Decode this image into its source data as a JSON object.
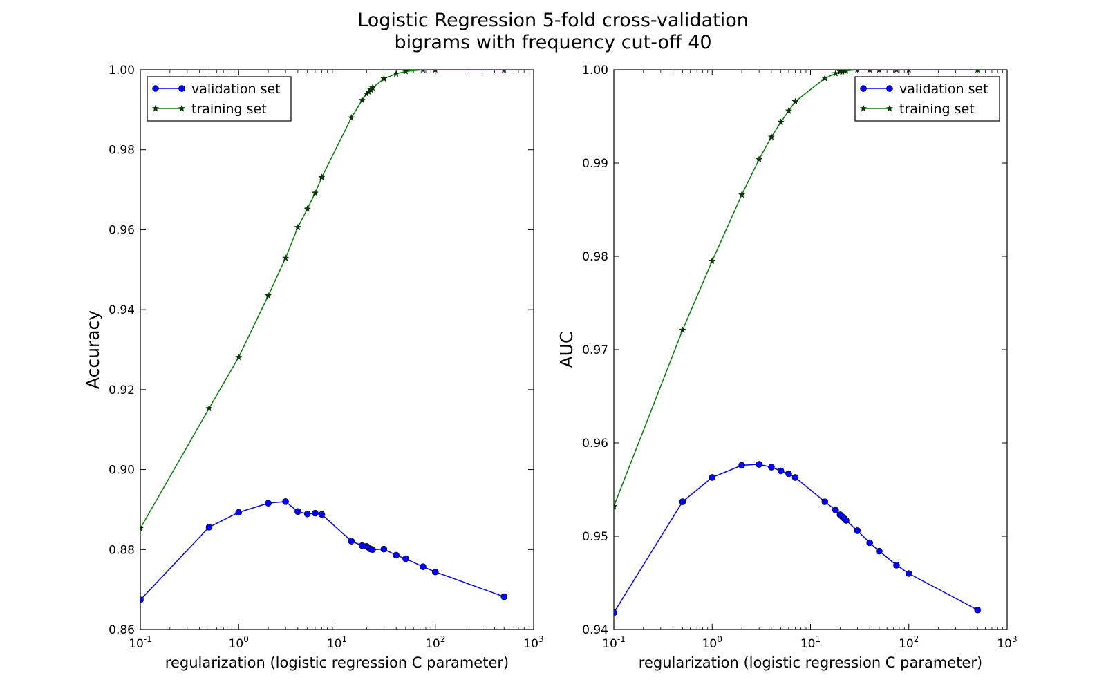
{
  "figure": {
    "title_line1": "Logistic Regression 5-fold cross-validation",
    "title_line2": "bigrams with frequency cut-off 40"
  },
  "colors": {
    "validation": "#0000ff",
    "training": "#007f00",
    "training_marker": "#003f00"
  },
  "chart_data": [
    {
      "type": "line",
      "title": "",
      "xlabel": "regularization (logistic regression C parameter)",
      "ylabel": "Accuracy",
      "xscale": "log",
      "xlim": [
        0.1,
        1000
      ],
      "ylim": [
        0.86,
        1.0
      ],
      "xticks": [
        0.1,
        1,
        10,
        100,
        1000
      ],
      "xtick_labels": [
        {
          "base": "10",
          "exp": "-1"
        },
        {
          "base": "10",
          "exp": "0"
        },
        {
          "base": "10",
          "exp": "1"
        },
        {
          "base": "10",
          "exp": "2"
        },
        {
          "base": "10",
          "exp": "3"
        }
      ],
      "yticks": [
        0.86,
        0.88,
        0.9,
        0.92,
        0.94,
        0.96,
        0.98,
        1.0
      ],
      "ytick_labels": [
        "0.86",
        "0.88",
        "0.90",
        "0.92",
        "0.94",
        "0.96",
        "0.98",
        "1.00"
      ],
      "legend_position": "top-left",
      "grid": false,
      "series": [
        {
          "name": "validation set",
          "marker": "circle",
          "color": "#0000ff",
          "x": [
            0.1,
            0.5,
            1,
            2,
            3,
            4,
            5,
            6,
            7,
            14,
            18,
            20,
            21,
            22,
            23,
            30,
            40,
            50,
            75,
            100,
            500
          ],
          "y": [
            0.8674,
            0.8856,
            0.8893,
            0.8916,
            0.892,
            0.8895,
            0.8889,
            0.8891,
            0.8888,
            0.8821,
            0.881,
            0.8808,
            0.8805,
            0.8801,
            0.88,
            0.8801,
            0.8786,
            0.8777,
            0.8757,
            0.8744,
            0.8682
          ]
        },
        {
          "name": "training set",
          "marker": "star",
          "color": "#007f00",
          "x": [
            0.1,
            0.5,
            1,
            2,
            3,
            4,
            5,
            6,
            7,
            14,
            18,
            20,
            21,
            22,
            23,
            30,
            40,
            50,
            75,
            100,
            500
          ],
          "y": [
            0.8853,
            0.9153,
            0.9281,
            0.9435,
            0.9529,
            0.9606,
            0.9652,
            0.9692,
            0.9731,
            0.988,
            0.9924,
            0.994,
            0.9945,
            0.995,
            0.9955,
            0.9978,
            0.999,
            0.9996,
            1.0,
            1.0,
            1.0
          ]
        }
      ]
    },
    {
      "type": "line",
      "title": "",
      "xlabel": "regularization (logistic regression C parameter)",
      "ylabel": "AUC",
      "xscale": "log",
      "xlim": [
        0.1,
        1000
      ],
      "ylim": [
        0.94,
        1.0
      ],
      "xticks": [
        0.1,
        1,
        10,
        100,
        1000
      ],
      "xtick_labels": [
        {
          "base": "10",
          "exp": "-1"
        },
        {
          "base": "10",
          "exp": "0"
        },
        {
          "base": "10",
          "exp": "1"
        },
        {
          "base": "10",
          "exp": "2"
        },
        {
          "base": "10",
          "exp": "3"
        }
      ],
      "yticks": [
        0.94,
        0.95,
        0.96,
        0.97,
        0.98,
        0.99,
        1.0
      ],
      "ytick_labels": [
        "0.94",
        "0.95",
        "0.96",
        "0.97",
        "0.98",
        "0.99",
        "1.00"
      ],
      "legend_position": "top-right",
      "grid": false,
      "series": [
        {
          "name": "validation set",
          "marker": "circle",
          "color": "#0000ff",
          "x": [
            0.1,
            0.5,
            1,
            2,
            3,
            4,
            5,
            6,
            7,
            14,
            18,
            20,
            21,
            22,
            23,
            30,
            40,
            50,
            75,
            100,
            500
          ],
          "y": [
            0.9418,
            0.9537,
            0.9563,
            0.9576,
            0.9577,
            0.9574,
            0.957,
            0.9567,
            0.9563,
            0.9537,
            0.9528,
            0.9523,
            0.9521,
            0.9519,
            0.9517,
            0.9506,
            0.9493,
            0.9484,
            0.9469,
            0.946,
            0.9421
          ]
        },
        {
          "name": "training set",
          "marker": "star",
          "color": "#007f00",
          "x": [
            0.1,
            0.5,
            1,
            2,
            3,
            4,
            5,
            6,
            7,
            14,
            18,
            20,
            21,
            22,
            23,
            30,
            40,
            50,
            75,
            100,
            500
          ],
          "y": [
            0.9532,
            0.9721,
            0.9795,
            0.9866,
            0.9904,
            0.9928,
            0.9944,
            0.9956,
            0.9966,
            0.9991,
            0.9996,
            0.9998,
            0.9998,
            0.9999,
            0.9999,
            1.0,
            1.0,
            1.0,
            1.0,
            1.0,
            1.0
          ]
        }
      ]
    }
  ]
}
